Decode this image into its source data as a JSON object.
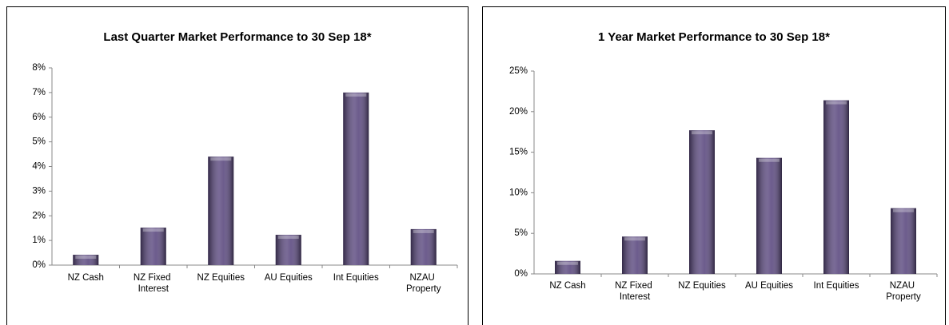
{
  "chart_data": [
    {
      "type": "bar",
      "title": "Last Quarter Market Performance to 30 Sep 18*",
      "categories": [
        "NZ Cash",
        "NZ Fixed Interest",
        "NZ Equities",
        "AU Equities",
        "Int Equities",
        "NZAU Property"
      ],
      "values": [
        0.42,
        1.52,
        4.4,
        1.23,
        7.0,
        1.46
      ],
      "color": "#5c4a80",
      "ylim": [
        0,
        8
      ],
      "yticks": [
        {
          "value": 0,
          "label": "0%"
        },
        {
          "value": 1,
          "label": "1%"
        },
        {
          "value": 2,
          "label": "2%"
        },
        {
          "value": 3,
          "label": "3%"
        },
        {
          "value": 4,
          "label": "4%"
        },
        {
          "value": 5,
          "label": "5%"
        },
        {
          "value": 6,
          "label": "6%"
        },
        {
          "value": 7,
          "label": "7%"
        },
        {
          "value": 8,
          "label": "8%"
        }
      ],
      "grid": false
    },
    {
      "type": "bar",
      "title": "1 Year Market Performance to 30 Sep 18*",
      "categories": [
        "NZ Cash",
        "NZ Fixed Interest",
        "NZ Equities",
        "AU Equities",
        "Int Equities",
        "NZAU Property"
      ],
      "values": [
        1.6,
        4.6,
        17.7,
        14.3,
        21.4,
        8.1
      ],
      "color": "#5c4a80",
      "ylim": [
        0,
        25
      ],
      "yticks": [
        {
          "value": 0,
          "label": "0%"
        },
        {
          "value": 5,
          "label": "5%"
        },
        {
          "value": 10,
          "label": "10%"
        },
        {
          "value": 15,
          "label": "15%"
        },
        {
          "value": 20,
          "label": "20%"
        },
        {
          "value": 25,
          "label": "25%"
        }
      ],
      "grid": false
    }
  ]
}
